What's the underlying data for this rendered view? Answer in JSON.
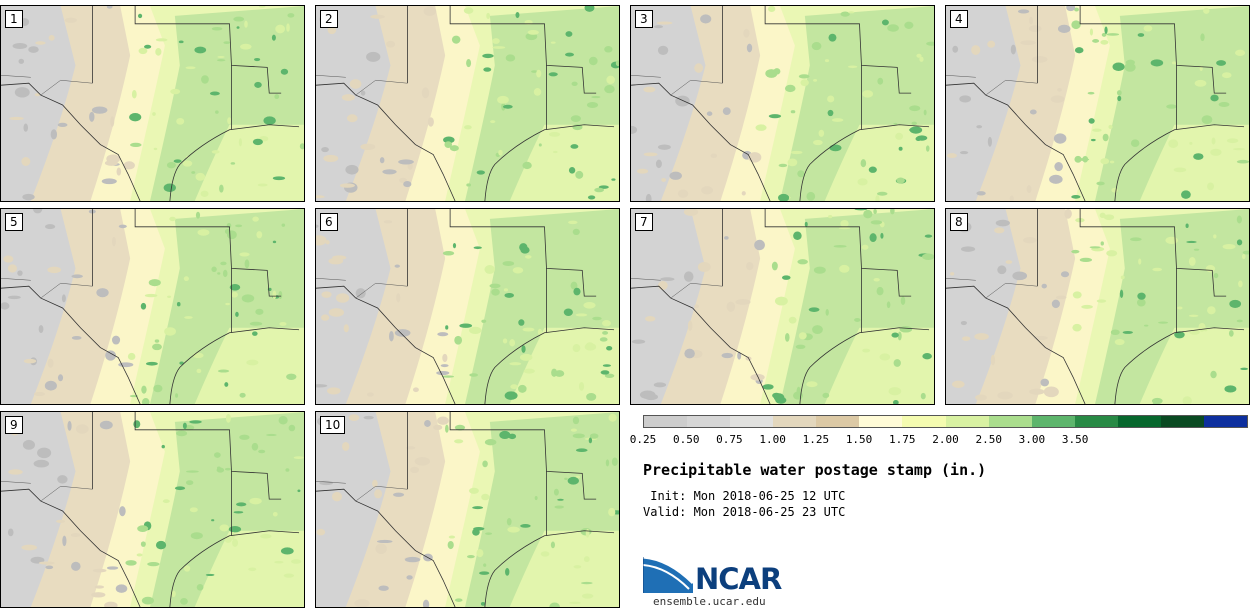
{
  "panels": [
    {
      "label": "1"
    },
    {
      "label": "2"
    },
    {
      "label": "3"
    },
    {
      "label": "4"
    },
    {
      "label": "5"
    },
    {
      "label": "6"
    },
    {
      "label": "7"
    },
    {
      "label": "8"
    },
    {
      "label": "9"
    },
    {
      "label": "10"
    }
  ],
  "colorbar": {
    "colors": [
      "#cdcdcd",
      "#d6d6d6",
      "#e1e1df",
      "#e3d7bd",
      "#dcc9a5",
      "#fffbd7",
      "#f4fbb0",
      "#d8f1a2",
      "#aadd8d",
      "#5db56c",
      "#288a45",
      "#07672d",
      "#0a4a22",
      "#0d2f9e"
    ],
    "ticks": [
      "0.25",
      "0.50",
      "0.75",
      "1.00",
      "1.25",
      "1.50",
      "1.75",
      "2.00",
      "2.50",
      "3.00",
      "3.50"
    ]
  },
  "title": "Precipitable water postage stamp (in.)",
  "init": " Init: Mon 2018-06-25 12 UTC",
  "valid": "Valid: Mon 2018-06-25 23 UTC",
  "logo_text": "NCAR",
  "site": "ensemble.ucar.edu"
}
